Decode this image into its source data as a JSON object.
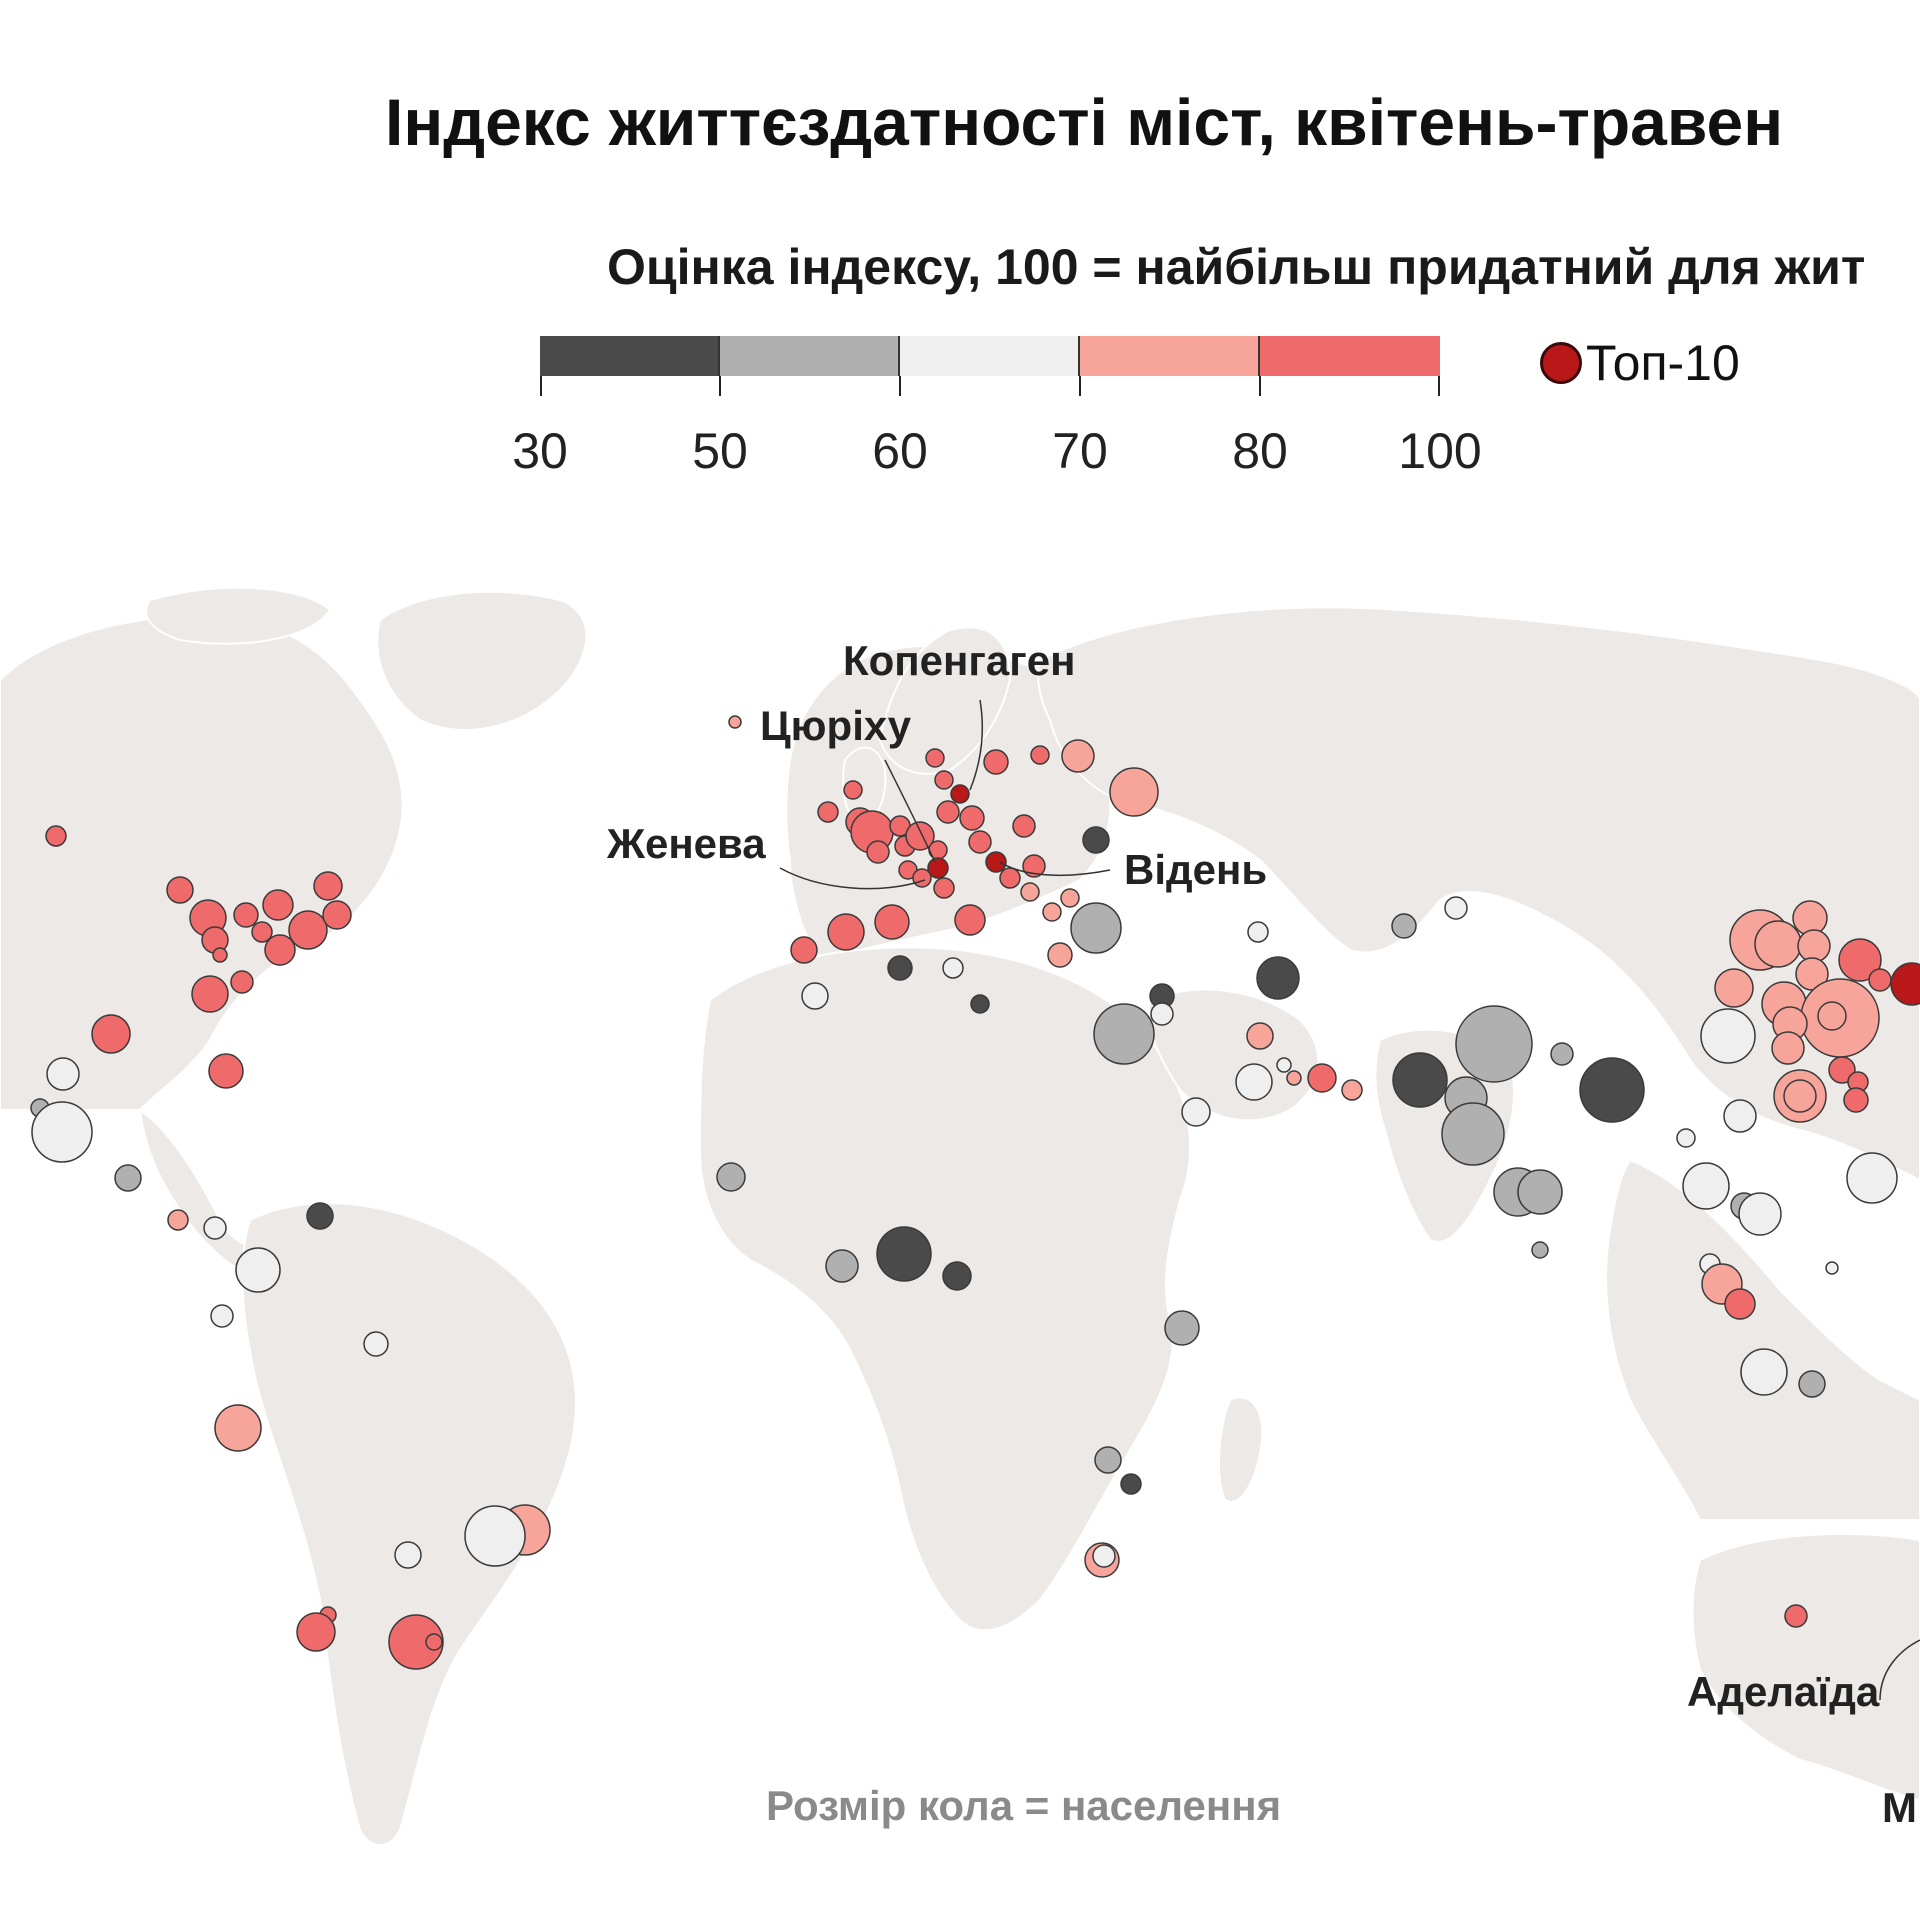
{
  "title": "Індекс життєздатності міст, квітень-травен",
  "subtitle": "Оцінка індексу, 100 = найбільш придатний для жит",
  "legend": {
    "bins": [
      {
        "from": 30,
        "to": 50,
        "color": "#4a4a4a"
      },
      {
        "from": 50,
        "to": 60,
        "color": "#b0b0b0"
      },
      {
        "from": 60,
        "to": 70,
        "color": "#efefef"
      },
      {
        "from": 70,
        "to": 80,
        "color": "#f7a59b"
      },
      {
        "from": 80,
        "to": 100,
        "color": "#ef6a6a"
      }
    ],
    "tick_labels": [
      "30",
      "50",
      "60",
      "70",
      "80",
      "100"
    ],
    "top10_label": "Топ-10",
    "top10_color": "#b81818"
  },
  "labels": {
    "copenhagen": "Копенгаген",
    "zurich": "Цюріху",
    "geneva": "Женева",
    "vienna": "Відень",
    "adelaide": "Аделаїда",
    "cut_label": "М"
  },
  "footnote": "Розмір кола = населення",
  "chart_data": {
    "type": "scatter",
    "title": "Індекс життєздатності міст, квітень-травен",
    "subtitle": "Оцінка індексу, 100 = найбільш придатний для жит",
    "encoding": {
      "color": "index score (30–100)",
      "size": "population"
    },
    "legend_placement": "top",
    "named_cities": [
      {
        "name": "Копенгаген",
        "category": "top-10"
      },
      {
        "name": "Цюріху",
        "category": "top-10"
      },
      {
        "name": "Женева",
        "category": "top-10"
      },
      {
        "name": "Відень",
        "category": "top-10"
      },
      {
        "name": "Аделаїда",
        "category": "top-10"
      }
    ],
    "bins": [
      "30–50",
      "50–60",
      "60–70",
      "70–80",
      "80–100"
    ]
  }
}
